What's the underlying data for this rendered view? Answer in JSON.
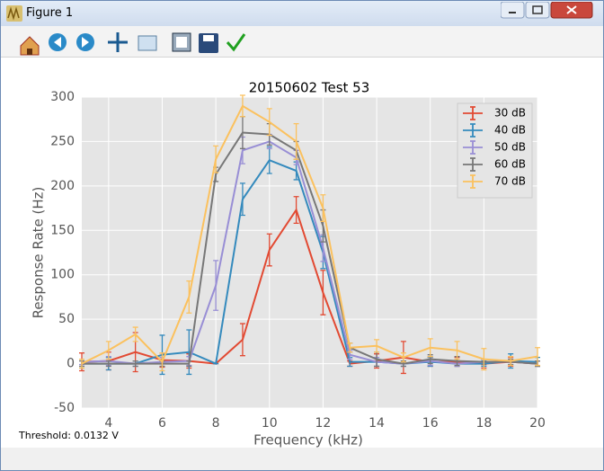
{
  "window_title": "Figure 1",
  "chart_data": {
    "type": "errorbar-line",
    "title": "20150602 Test 53",
    "x_label": "Frequency (kHz)",
    "y_label": "Response Rate (Hz)",
    "annotation": "Threshold: 0.0132 V",
    "x": [
      3,
      4,
      5,
      6,
      7,
      8,
      9,
      10,
      11,
      12,
      13,
      14,
      15,
      16,
      17,
      18,
      19,
      20
    ],
    "xlim": [
      3,
      20
    ],
    "xticks": [
      4,
      6,
      8,
      10,
      12,
      14,
      16,
      18,
      20
    ],
    "ylim": [
      -50,
      300
    ],
    "yticks": [
      -50,
      0,
      50,
      100,
      150,
      200,
      250,
      300
    ],
    "grid": true,
    "legend": "upper right",
    "series": [
      {
        "name": "30 dB",
        "color": "#e24a33",
        "values": [
          2,
          3,
          13,
          4,
          3,
          0,
          27,
          128,
          173,
          80,
          0,
          3,
          7,
          2,
          2,
          0,
          2,
          0
        ],
        "errors": [
          10,
          10,
          22,
          8,
          8,
          0,
          18,
          18,
          15,
          25,
          3,
          8,
          18,
          5,
          5,
          5,
          5,
          3
        ]
      },
      {
        "name": "40 dB",
        "color": "#348abd",
        "values": [
          0,
          0,
          0,
          10,
          13,
          0,
          185,
          229,
          217,
          125,
          2,
          2,
          0,
          2,
          0,
          0,
          3,
          2
        ],
        "errors": [
          5,
          7,
          3,
          22,
          25,
          0,
          18,
          15,
          10,
          18,
          5,
          5,
          3,
          5,
          3,
          3,
          8,
          5
        ]
      },
      {
        "name": "50 dB",
        "color": "#988ed5",
        "values": [
          2,
          3,
          0,
          2,
          3,
          88,
          240,
          250,
          232,
          130,
          10,
          2,
          0,
          3,
          0,
          2,
          2,
          0
        ],
        "errors": [
          3,
          5,
          3,
          5,
          5,
          28,
          15,
          8,
          8,
          15,
          5,
          5,
          3,
          5,
          3,
          3,
          3,
          3
        ]
      },
      {
        "name": "60 dB",
        "color": "#777777",
        "values": [
          0,
          0,
          0,
          0,
          0,
          213,
          260,
          258,
          240,
          155,
          18,
          5,
          0,
          5,
          3,
          2,
          2,
          0
        ],
        "errors": [
          3,
          3,
          3,
          3,
          3,
          8,
          18,
          12,
          10,
          18,
          5,
          8,
          3,
          5,
          5,
          3,
          3,
          3
        ]
      },
      {
        "name": "70 dB",
        "color": "#fbc15e",
        "values": [
          0,
          15,
          33,
          2,
          75,
          230,
          290,
          272,
          250,
          175,
          18,
          20,
          7,
          18,
          15,
          5,
          3,
          8
        ],
        "errors": [
          5,
          10,
          8,
          10,
          18,
          15,
          12,
          15,
          20,
          15,
          5,
          7,
          5,
          10,
          10,
          12,
          5,
          10
        ]
      }
    ]
  }
}
